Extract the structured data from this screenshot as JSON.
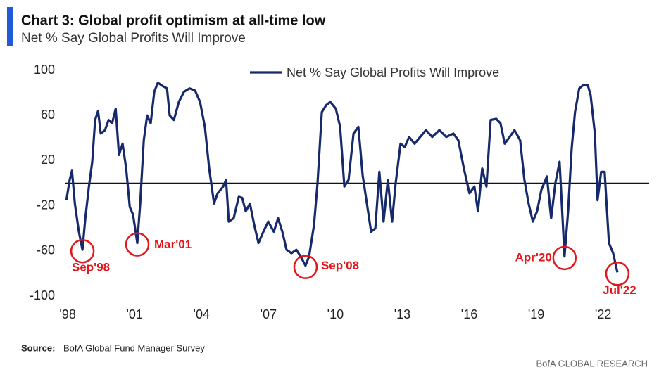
{
  "chart_data": {
    "type": "line",
    "title": "Chart 3: Global profit optimism at all-time low",
    "subtitle": "Net % Say Global Profits Will Improve",
    "source_label": "Source:",
    "source": "BofA Global Fund Manager Survey",
    "footer": "BofA GLOBAL RESEARCH",
    "legend": "top",
    "reference_line": 0,
    "xlim": [
      1997.9,
      2024
    ],
    "ylim": [
      -100,
      100
    ],
    "yticks": [
      -100,
      -60,
      -20,
      20,
      60,
      100
    ],
    "xticks": [
      {
        "value": 1998,
        "label": "'98"
      },
      {
        "value": 2001,
        "label": "'01"
      },
      {
        "value": 2004,
        "label": "'04"
      },
      {
        "value": 2007,
        "label": "'07"
      },
      {
        "value": 2010,
        "label": "'10"
      },
      {
        "value": 2013,
        "label": "'13"
      },
      {
        "value": 2016,
        "label": "'16"
      },
      {
        "value": 2019,
        "label": "'19"
      },
      {
        "value": 2022,
        "label": "'22"
      }
    ],
    "x": [
      1997.94,
      1998.09,
      1998.19,
      1998.32,
      1998.5,
      1998.66,
      1998.79,
      1998.95,
      1999.1,
      1999.23,
      1999.36,
      1999.48,
      1999.67,
      1999.83,
      1999.99,
      2000.15,
      2000.3,
      2000.46,
      2000.62,
      2000.78,
      2000.93,
      2001.12,
      2001.25,
      2001.41,
      2001.56,
      2001.72,
      2001.88,
      2002.04,
      2002.26,
      2002.45,
      2002.57,
      2002.76,
      2002.98,
      2003.21,
      2003.46,
      2003.71,
      2003.93,
      2004.15,
      2004.34,
      2004.56,
      2004.72,
      2004.97,
      2005.1,
      2005.22,
      2005.44,
      2005.67,
      2005.82,
      2005.98,
      2006.17,
      2006.36,
      2006.55,
      2006.77,
      2006.99,
      2007.24,
      2007.43,
      2007.62,
      2007.81,
      2008.03,
      2008.25,
      2008.44,
      2008.66,
      2008.82,
      2009.04,
      2009.2,
      2009.39,
      2009.58,
      2009.77,
      2010.02,
      2010.21,
      2010.4,
      2010.59,
      2010.81,
      2011.03,
      2011.22,
      2011.41,
      2011.6,
      2011.79,
      2011.97,
      2012.16,
      2012.35,
      2012.54,
      2012.7,
      2012.92,
      2013.11,
      2013.3,
      2013.55,
      2013.8,
      2014.06,
      2014.34,
      2014.66,
      2014.97,
      2015.29,
      2015.51,
      2015.76,
      2016.01,
      2016.23,
      2016.39,
      2016.58,
      2016.77,
      2016.96,
      2017.21,
      2017.4,
      2017.59,
      2017.81,
      2018.03,
      2018.28,
      2018.47,
      2018.66,
      2018.85,
      2019.04,
      2019.23,
      2019.48,
      2019.67,
      2019.86,
      2020.05,
      2020.18,
      2020.27,
      2020.43,
      2020.59,
      2020.74,
      2020.93,
      2021.12,
      2021.31,
      2021.44,
      2021.63,
      2021.75,
      2021.91,
      2022.07,
      2022.26,
      2022.45,
      2022.64
    ],
    "series": [
      {
        "name": "Net % Say Global Profits Will Improve",
        "color": "#16296b",
        "values": [
          -15,
          3,
          11,
          -18,
          -43,
          -59,
          -31,
          -3,
          19,
          56,
          64,
          44,
          47,
          56,
          53,
          66,
          25,
          35,
          13,
          -21,
          -28,
          -53,
          -18,
          38,
          60,
          53,
          81,
          89,
          86,
          84,
          60,
          56,
          72,
          81,
          84,
          82,
          72,
          50,
          13,
          -18,
          -9,
          -3,
          3,
          -34,
          -31,
          -12,
          -13,
          -25,
          -18,
          -37,
          -53,
          -43,
          -34,
          -43,
          -31,
          -43,
          -59,
          -62,
          -59,
          -65,
          -73,
          -65,
          -37,
          0,
          63,
          69,
          72,
          66,
          50,
          -3,
          3,
          44,
          50,
          7,
          -18,
          -43,
          -40,
          10,
          -34,
          3,
          -34,
          0,
          35,
          32,
          41,
          35,
          41,
          47,
          41,
          47,
          41,
          44,
          38,
          13,
          -9,
          -3,
          -25,
          13,
          -3,
          56,
          57,
          53,
          35,
          41,
          47,
          38,
          3,
          -18,
          -34,
          -25,
          -6,
          6,
          -31,
          0,
          19,
          -31,
          -65,
          -25,
          31,
          63,
          84,
          87,
          87,
          78,
          44,
          -15,
          10,
          10,
          -53,
          -62,
          -79
        ]
      }
    ],
    "annotations": [
      {
        "text": "Sep'98",
        "x": 1998.66,
        "y": -59
      },
      {
        "text": "Mar'01",
        "x": 2001.12,
        "y": -53
      },
      {
        "text": "Sep'08",
        "x": 2008.66,
        "y": -73
      },
      {
        "text": "Apr'20",
        "x": 2020.27,
        "y": -65
      },
      {
        "text": "Jul'22",
        "x": 2022.64,
        "y": -79
      }
    ]
  }
}
